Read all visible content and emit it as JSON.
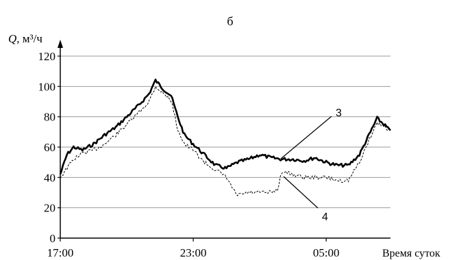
{
  "chart_data": {
    "type": "line",
    "panel_label": "б",
    "ylabel_var": "Q",
    "ylabel_unit": ", м³/ч",
    "xlabel": "Время суток",
    "ylim": [
      0,
      120
    ],
    "yticks": [
      "0",
      "20",
      "40",
      "60",
      "80",
      "100",
      "120"
    ],
    "xticks": [
      {
        "label": "17:00",
        "hour": 17
      },
      {
        "label": "23:00",
        "hour": 23
      },
      {
        "label": "05:00",
        "hour": 29
      }
    ],
    "xlim_hours": [
      17,
      31.9
    ],
    "grid": "horizontal",
    "series": [
      {
        "name": "3",
        "style": "solid-thick",
        "x": [
          17.0,
          17.3,
          17.6,
          18.0,
          18.5,
          19.0,
          19.5,
          20.0,
          20.5,
          21.0,
          21.3,
          21.6,
          22.0,
          22.3,
          22.6,
          23.0,
          23.5,
          24.0,
          24.5,
          25.0,
          25.5,
          26.0,
          26.5,
          27.0,
          27.5,
          28.0,
          28.5,
          29.0,
          29.5,
          30.0,
          30.5,
          31.0,
          31.3,
          31.6,
          31.9
        ],
        "y": [
          42,
          55,
          60,
          58,
          62,
          68,
          73,
          80,
          87,
          95,
          104,
          99,
          94,
          80,
          68,
          62,
          55,
          48,
          46,
          50,
          52,
          55,
          53,
          52,
          52,
          51,
          53,
          50,
          48,
          48,
          55,
          70,
          79,
          75,
          71
        ]
      },
      {
        "name": "4",
        "style": "dashed-thin",
        "x": [
          17.0,
          17.3,
          17.6,
          18.0,
          18.5,
          19.0,
          19.5,
          20.0,
          20.5,
          21.0,
          21.3,
          21.6,
          22.0,
          22.3,
          22.6,
          23.0,
          23.5,
          24.0,
          24.5,
          24.8,
          25.0,
          25.5,
          26.0,
          26.5,
          26.8,
          27.0,
          27.5,
          28.0,
          28.5,
          29.0,
          29.5,
          30.0,
          30.5,
          31.0,
          31.3,
          31.6,
          31.9
        ],
        "y": [
          40,
          46,
          52,
          56,
          58,
          62,
          68,
          75,
          82,
          90,
          100,
          96,
          91,
          72,
          62,
          58,
          50,
          45,
          40,
          32,
          28,
          30,
          30,
          30,
          32,
          44,
          42,
          40,
          40,
          40,
          38,
          38,
          50,
          67,
          76,
          74,
          71
        ]
      }
    ],
    "annotations": [
      {
        "text": "3",
        "points_to": "3"
      },
      {
        "text": "4",
        "points_to": "4"
      }
    ]
  }
}
